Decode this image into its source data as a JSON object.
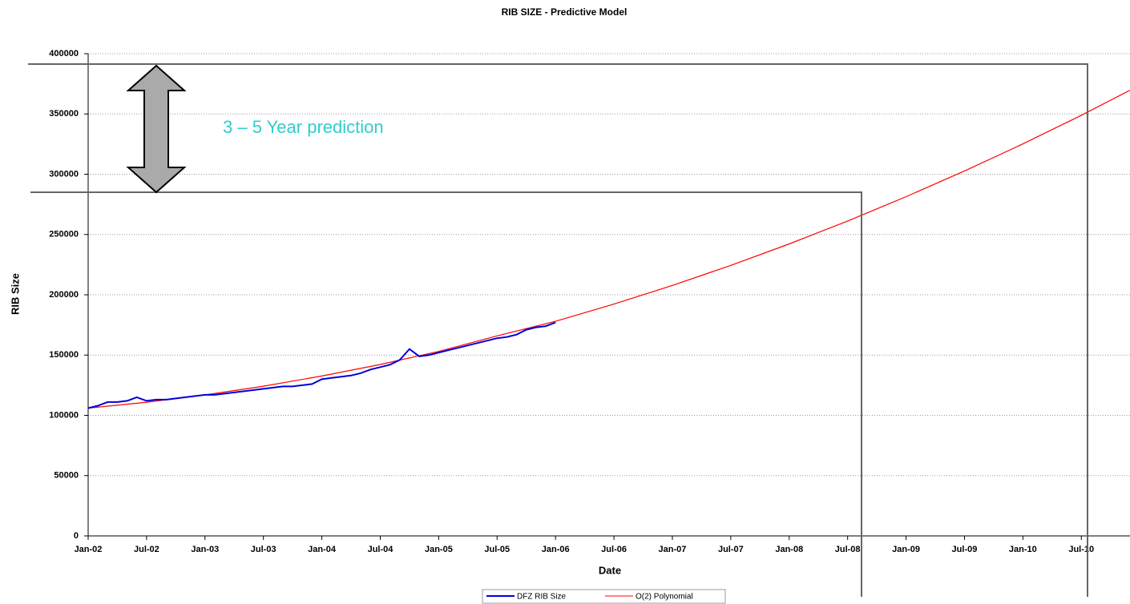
{
  "chart_data": {
    "type": "line",
    "title": "RIB SIZE - Predictive Model",
    "xlabel": "Date",
    "ylabel": "RIB Size",
    "annotation": "3 – 5 Year prediction",
    "xlim": [
      "Jan-02",
      "Dec-10"
    ],
    "xticks": [
      "Jan-02",
      "Jul-02",
      "Jan-03",
      "Jul-03",
      "Jan-04",
      "Jul-04",
      "Jan-05",
      "Jul-05",
      "Jan-06",
      "Jul-06",
      "Jan-07",
      "Jul-07",
      "Jan-08",
      "Jul-08",
      "Jan-09",
      "Jul-09",
      "Jan-10",
      "Jul-10"
    ],
    "ylim": [
      0,
      400000
    ],
    "yticks": [
      0,
      50000,
      100000,
      150000,
      200000,
      250000,
      300000,
      350000,
      400000
    ],
    "grid": true,
    "legend": "bottom",
    "series": [
      {
        "name": "DFZ RIB Size",
        "color": "#0000dd",
        "x": [
          "Jan-02",
          "Feb-02",
          "Mar-02",
          "Apr-02",
          "May-02",
          "Jun-02",
          "Jul-02",
          "Aug-02",
          "Sep-02",
          "Oct-02",
          "Nov-02",
          "Dec-02",
          "Jan-03",
          "Feb-03",
          "Mar-03",
          "Apr-03",
          "May-03",
          "Jun-03",
          "Jul-03",
          "Aug-03",
          "Sep-03",
          "Oct-03",
          "Nov-03",
          "Dec-03",
          "Jan-04",
          "Feb-04",
          "Mar-04",
          "Apr-04",
          "May-04",
          "Jun-04",
          "Jul-04",
          "Aug-04",
          "Sep-04",
          "Oct-04",
          "Nov-04",
          "Dec-04",
          "Jan-05",
          "Feb-05",
          "Mar-05",
          "Apr-05",
          "May-05",
          "Jun-05",
          "Jul-05",
          "Aug-05",
          "Sep-05",
          "Oct-05",
          "Nov-05",
          "Dec-05",
          "Jan-06"
        ],
        "values": [
          106000,
          108000,
          111000,
          111000,
          112000,
          115000,
          112000,
          113000,
          113000,
          114000,
          115000,
          116000,
          117000,
          117000,
          118000,
          119000,
          120000,
          121000,
          122000,
          123000,
          124000,
          124000,
          125000,
          126000,
          130000,
          131000,
          132000,
          133000,
          135000,
          138000,
          140000,
          142000,
          146000,
          155000,
          149000,
          150000,
          152000,
          154000,
          156000,
          158000,
          160000,
          162000,
          164000,
          165000,
          167000,
          171000,
          173000,
          174000,
          177000
        ]
      },
      {
        "name": "O(2) Polynomial",
        "color": "#ff0000",
        "x": [
          "Jan-02",
          "Jul-02",
          "Jan-03",
          "Jul-03",
          "Jan-04",
          "Jul-04",
          "Jan-05",
          "Jul-05",
          "Jan-06",
          "Jul-06",
          "Jan-07",
          "Jul-07",
          "Jan-08",
          "Jul-08",
          "Jan-09",
          "Jul-09",
          "Jan-10",
          "Jul-10",
          "Dec-10"
        ],
        "values": [
          106000,
          110900,
          116950,
          124200,
          132600,
          142200,
          153000,
          165900,
          178000,
          192300,
          207800,
          224400,
          242200,
          261200,
          281400,
          302700,
          325200,
          348900,
          369700
        ]
      }
    ]
  }
}
